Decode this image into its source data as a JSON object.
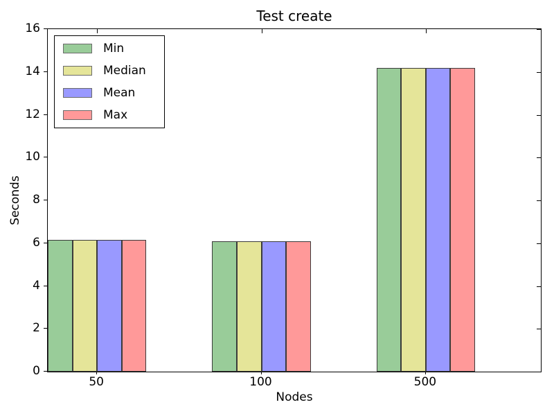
{
  "chart_data": {
    "type": "bar",
    "title": "Test create",
    "xlabel": "Nodes",
    "ylabel": "Seconds",
    "categories": [
      "50",
      "100",
      "500"
    ],
    "series": [
      {
        "name": "Min",
        "color": "#99CC99",
        "values": [
          6.15,
          6.1,
          14.2
        ]
      },
      {
        "name": "Median",
        "color": "#E5E599",
        "values": [
          6.15,
          6.1,
          14.2
        ]
      },
      {
        "name": "Mean",
        "color": "#9999FF",
        "values": [
          6.15,
          6.1,
          14.2
        ]
      },
      {
        "name": "Max",
        "color": "#FF9999",
        "values": [
          6.15,
          6.1,
          14.2
        ]
      }
    ],
    "edge_color": "#3a3a3a",
    "ylim": [
      0,
      16
    ],
    "ytick_step": 2,
    "xlim": [
      0,
      3
    ],
    "group_positions": [
      0,
      1,
      2
    ],
    "bar_width_units": 0.15,
    "xtick_offset_units": 0.3,
    "grid": false,
    "legend_position": "upper left",
    "background": "#ffffff"
  }
}
